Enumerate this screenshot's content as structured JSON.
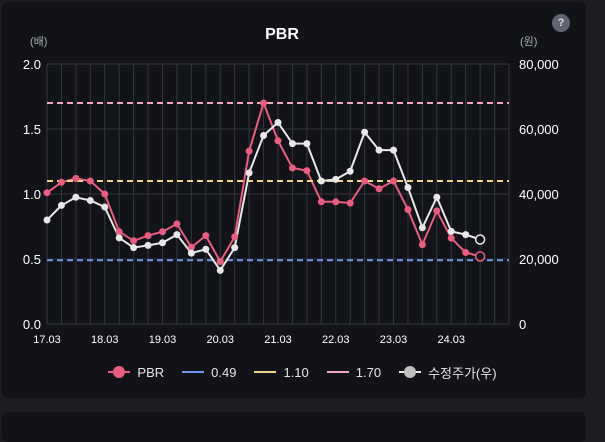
{
  "chart_data": {
    "type": "line",
    "title": "PBR",
    "left_unit": "(배)",
    "right_unit": "(원)",
    "ylim": [
      0,
      2.0
    ],
    "y2lim": [
      0,
      80000
    ],
    "y_ticks": [
      "0.0",
      "0.5",
      "1.0",
      "1.5",
      "2.0"
    ],
    "y2_ticks": [
      "0",
      "20,000",
      "40,000",
      "60,000",
      "80,000"
    ],
    "x_ticks": [
      "17.03",
      "18.03",
      "19.03",
      "20.03",
      "21.03",
      "22.03",
      "23.03",
      "24.03"
    ],
    "grid": true,
    "legend": "bottom",
    "series": [
      {
        "name": "PBR",
        "axis": "left",
        "color": "#e85d80",
        "x": [
          2017.0,
          2017.25,
          2017.5,
          2017.75,
          2018.0,
          2018.25,
          2018.5,
          2018.75,
          2019.0,
          2019.25,
          2019.5,
          2019.75,
          2020.0,
          2020.25,
          2020.5,
          2020.75,
          2021.0,
          2021.25,
          2021.5,
          2021.75,
          2022.0,
          2022.25,
          2022.5,
          2022.75,
          2023.0,
          2023.25,
          2023.5,
          2023.75,
          2024.0,
          2024.25,
          2024.5
        ],
        "values": [
          1.01,
          1.09,
          1.12,
          1.1,
          1.0,
          0.71,
          0.64,
          0.68,
          0.71,
          0.77,
          0.59,
          0.68,
          0.48,
          0.67,
          1.33,
          1.7,
          1.41,
          1.2,
          1.18,
          0.94,
          0.94,
          0.93,
          1.1,
          1.04,
          1.1,
          0.88,
          0.61,
          0.87,
          0.66,
          0.55,
          0.52
        ]
      },
      {
        "name": "0.49",
        "axis": "left",
        "color": "#6f97ee",
        "dashed": true,
        "values": [
          0.49
        ]
      },
      {
        "name": "1.10",
        "axis": "left",
        "color": "#efd586",
        "dashed": true,
        "values": [
          1.1
        ]
      },
      {
        "name": "1.70",
        "axis": "left",
        "color": "#f2a8be",
        "dashed": true,
        "values": [
          1.7
        ]
      },
      {
        "name": "수정주가(우)",
        "axis": "right",
        "color": "#e8e8e8",
        "x": [
          2017.0,
          2017.25,
          2017.5,
          2017.75,
          2018.0,
          2018.25,
          2018.5,
          2018.75,
          2019.0,
          2019.25,
          2019.5,
          2019.75,
          2020.0,
          2020.25,
          2020.5,
          2020.75,
          2021.0,
          2021.25,
          2021.5,
          2021.75,
          2022.0,
          2022.25,
          2022.5,
          2022.75,
          2023.0,
          2023.25,
          2023.5,
          2023.75,
          2024.0,
          2024.25,
          2024.5
        ],
        "values": [
          32000,
          36500,
          39000,
          38000,
          36000,
          26500,
          23500,
          24200,
          25000,
          27500,
          21800,
          23000,
          16500,
          23500,
          46500,
          58000,
          62000,
          55500,
          55500,
          44000,
          44500,
          47000,
          59000,
          53500,
          53500,
          42000,
          29600,
          39000,
          28500,
          27500,
          26000
        ]
      }
    ]
  }
}
